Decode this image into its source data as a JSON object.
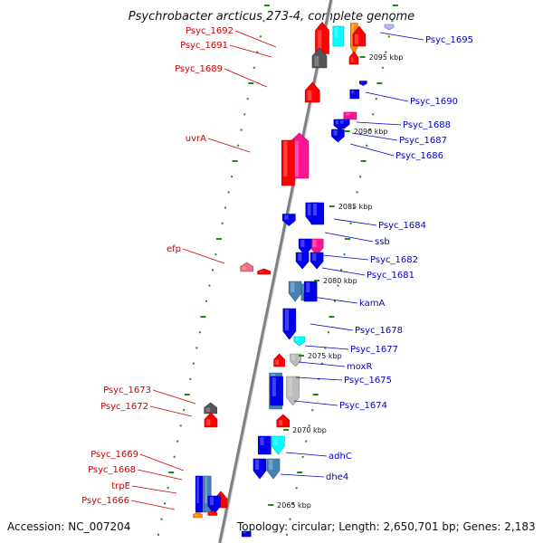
{
  "title": "Psychrobacter arcticus 273-4, complete genome",
  "footer": {
    "accession": "Accession: NC_007204",
    "summary": "Topology: circular; Length: 2,650,701 bp; Genes: 2,183"
  },
  "colors": {
    "backbone": "#808080",
    "label_left": "#cc0000",
    "label_right": "#0000cc",
    "tick": "#1a8a1a",
    "red": "#ff0000",
    "blue": "#0000ee",
    "steelblue": "#4682b4",
    "cyan": "#00ffff",
    "magenta": "#ff1493",
    "gray": "#555555",
    "silver": "#bdbdbd",
    "pink": "#ee6e82",
    "orange": "#ff8c00",
    "lavender": "#b4b4ff"
  },
  "kbp_markers": [
    {
      "kbp": 2095,
      "label": "2095 kbp"
    },
    {
      "kbp": 2090,
      "label": "2090 kbp"
    },
    {
      "kbp": 2085,
      "label": "2085 kbp"
    },
    {
      "kbp": 2080,
      "label": "2080 kbp"
    },
    {
      "kbp": 2075,
      "label": "2075 kbp"
    },
    {
      "kbp": 2070,
      "label": "2070 kbp"
    },
    {
      "kbp": 2065,
      "label": "2065 kbp"
    }
  ],
  "genes": [
    {
      "name": "Psyc_1695",
      "strand": "minus",
      "labeled": true,
      "side": "right",
      "color": "orange"
    },
    {
      "name": "Psyc_1692",
      "strand": "plus",
      "labeled": true,
      "side": "left",
      "color": "red"
    },
    {
      "name": "Psyc_1691",
      "strand": "plus",
      "labeled": true,
      "side": "left",
      "color": "gray"
    },
    {
      "name": "Psyc_1690",
      "strand": "minus",
      "labeled": true,
      "side": "right",
      "color": "blue"
    },
    {
      "name": "Psyc_1689",
      "strand": "plus",
      "labeled": true,
      "side": "left",
      "color": "red"
    },
    {
      "name": "Psyc_1688",
      "strand": "minus",
      "labeled": true,
      "side": "right",
      "color": "magenta"
    },
    {
      "name": "Psyc_1687",
      "strand": "minus",
      "labeled": true,
      "side": "right",
      "color": "blue"
    },
    {
      "name": "Psyc_1686",
      "strand": "minus",
      "labeled": true,
      "side": "right",
      "color": "blue"
    },
    {
      "name": "uvrA",
      "strand": "plus",
      "labeled": true,
      "side": "left",
      "color": "magenta"
    },
    {
      "name": "Psyc_1684",
      "strand": "minus",
      "labeled": true,
      "side": "right",
      "color": "blue"
    },
    {
      "name": "ssb",
      "strand": "minus",
      "labeled": true,
      "side": "right",
      "color": "magenta"
    },
    {
      "name": "Psyc_1682",
      "strand": "minus",
      "labeled": true,
      "side": "right",
      "color": "blue"
    },
    {
      "name": "Psyc_1681",
      "strand": "minus",
      "labeled": true,
      "side": "right",
      "color": "steelblue"
    },
    {
      "name": "efp",
      "strand": "plus",
      "labeled": true,
      "side": "left",
      "color": "pink"
    },
    {
      "name": "kamA",
      "strand": "minus",
      "labeled": true,
      "side": "right",
      "color": "steelblue"
    },
    {
      "name": "Psyc_1678",
      "strand": "minus",
      "labeled": true,
      "side": "right",
      "color": "blue"
    },
    {
      "name": "Psyc_1677",
      "strand": "minus",
      "labeled": true,
      "side": "right",
      "color": "cyan"
    },
    {
      "name": "moxR",
      "strand": "minus",
      "labeled": true,
      "side": "right",
      "color": "silver"
    },
    {
      "name": "Psyc_1675",
      "strand": "minus",
      "labeled": true,
      "side": "right",
      "color": "silver"
    },
    {
      "name": "Psyc_1674",
      "strand": "minus",
      "labeled": true,
      "side": "right",
      "color": "steelblue"
    },
    {
      "name": "Psyc_1673",
      "strand": "plus",
      "labeled": true,
      "side": "left",
      "color": "gray"
    },
    {
      "name": "Psyc_1672",
      "strand": "plus",
      "labeled": true,
      "side": "left",
      "color": "red"
    },
    {
      "name": "adhC",
      "strand": "minus",
      "labeled": true,
      "side": "right",
      "color": "cyan"
    },
    {
      "name": "dhe4",
      "strand": "minus",
      "labeled": true,
      "side": "right",
      "color": "steelblue"
    },
    {
      "name": "Psyc_1669",
      "strand": "plus",
      "labeled": true,
      "side": "left",
      "color": "blue"
    },
    {
      "name": "Psyc_1668",
      "strand": "plus",
      "labeled": true,
      "side": "left",
      "color": "steelblue"
    },
    {
      "name": "trpE",
      "strand": "plus",
      "labeled": true,
      "side": "left",
      "color": "red"
    },
    {
      "name": "Psyc_1666",
      "strand": "plus",
      "labeled": true,
      "side": "left",
      "color": "orange"
    },
    {
      "name": "",
      "strand": "plus",
      "labeled": false,
      "color": "cyan"
    },
    {
      "name": "",
      "strand": "plus",
      "labeled": false,
      "color": "red"
    },
    {
      "name": "",
      "strand": "minus",
      "labeled": false,
      "color": "blue"
    },
    {
      "name": "",
      "strand": "minus",
      "labeled": false,
      "color": "blue"
    },
    {
      "name": "",
      "strand": "plus",
      "labeled": false,
      "color": "red"
    },
    {
      "name": "",
      "strand": "minus",
      "labeled": false,
      "color": "blue"
    },
    {
      "name": "",
      "strand": "minus",
      "labeled": false,
      "color": "blue"
    },
    {
      "name": "",
      "strand": "minus",
      "labeled": false,
      "color": "blue"
    },
    {
      "name": "",
      "strand": "minus",
      "labeled": false,
      "color": "blue"
    },
    {
      "name": "",
      "strand": "minus",
      "labeled": false,
      "color": "blue"
    },
    {
      "name": "",
      "strand": "plus",
      "labeled": false,
      "color": "red"
    },
    {
      "name": "",
      "strand": "plus",
      "labeled": false,
      "color": "red"
    },
    {
      "name": "",
      "strand": "minus",
      "labeled": false,
      "color": "blue"
    },
    {
      "name": "",
      "strand": "minus",
      "labeled": false,
      "color": "blue"
    },
    {
      "name": "",
      "strand": "minus",
      "labeled": false,
      "color": "blue"
    },
    {
      "name": "",
      "strand": "minus",
      "labeled": false,
      "color": "blue"
    },
    {
      "name": "",
      "strand": "plus",
      "labeled": false,
      "color": "red"
    },
    {
      "name": "",
      "strand": "plus",
      "labeled": false,
      "color": "red"
    },
    {
      "name": "",
      "strand": "plus",
      "labeled": false,
      "color": "red"
    },
    {
      "name": "",
      "strand": "minus",
      "labeled": false,
      "color": "blue"
    },
    {
      "name": "",
      "strand": "minus",
      "labeled": false,
      "color": "lavender"
    }
  ]
}
